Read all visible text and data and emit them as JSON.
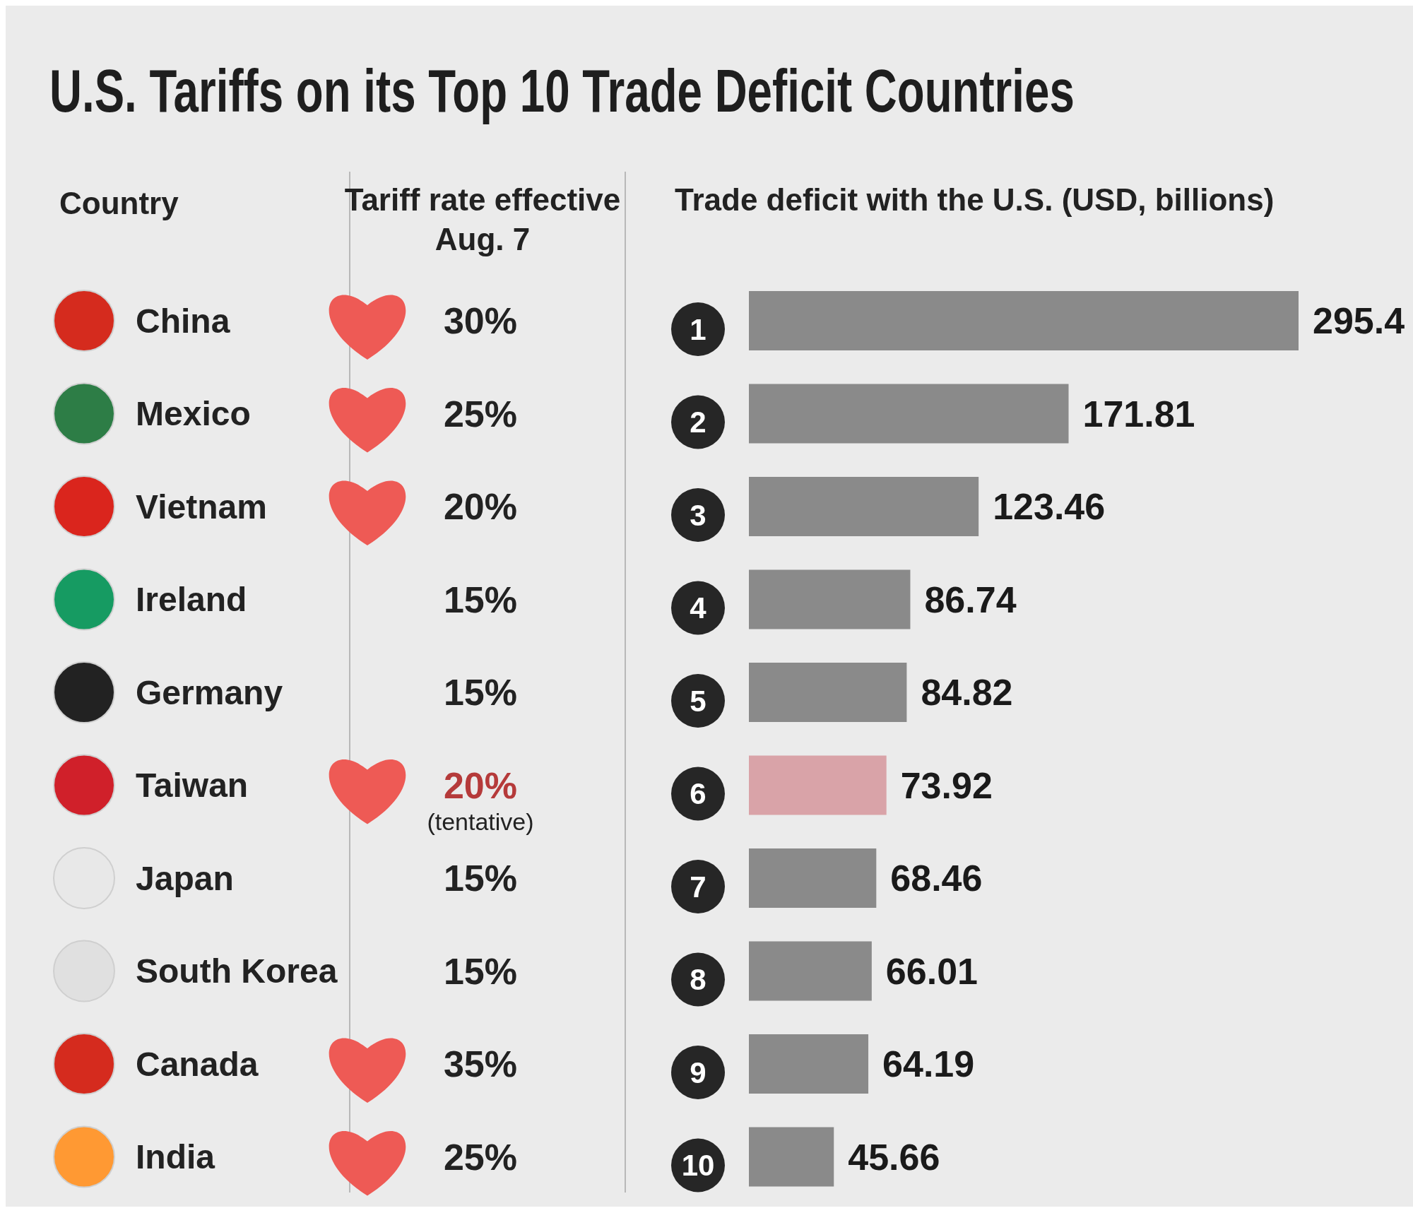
{
  "chart_data": {
    "type": "bar",
    "orientation": "horizontal",
    "title": "U.S. Tariffs on its Top 10 Trade Deficit Countries",
    "xlabel": "Trade deficit with the U.S. (USD, billions)",
    "categories": [
      "China",
      "Mexico",
      "Vietnam",
      "Ireland",
      "Germany",
      "Taiwan",
      "Japan",
      "South Korea",
      "Canada",
      "India"
    ],
    "values": [
      295.4,
      171.81,
      123.46,
      86.74,
      84.82,
      73.92,
      68.46,
      66.01,
      64.19,
      45.66
    ],
    "colors": [
      "#8a8a8a",
      "#8a8a8a",
      "#8a8a8a",
      "#8a8a8a",
      "#8a8a8a",
      "#d9a3a8",
      "#8a8a8a",
      "#8a8a8a",
      "#8a8a8a",
      "#8a8a8a"
    ],
    "data_labels": true,
    "annotations": [
      "Country",
      "Tariff rate effective Aug. 7",
      "1",
      "2",
      "3",
      "4",
      "5",
      "6",
      "7",
      "8",
      "9",
      "10",
      "30%",
      "25%",
      "20%",
      "15%",
      "15%",
      "20%",
      "15%",
      "15%",
      "35%",
      "25%",
      "(tentative)"
    ]
  }
}
